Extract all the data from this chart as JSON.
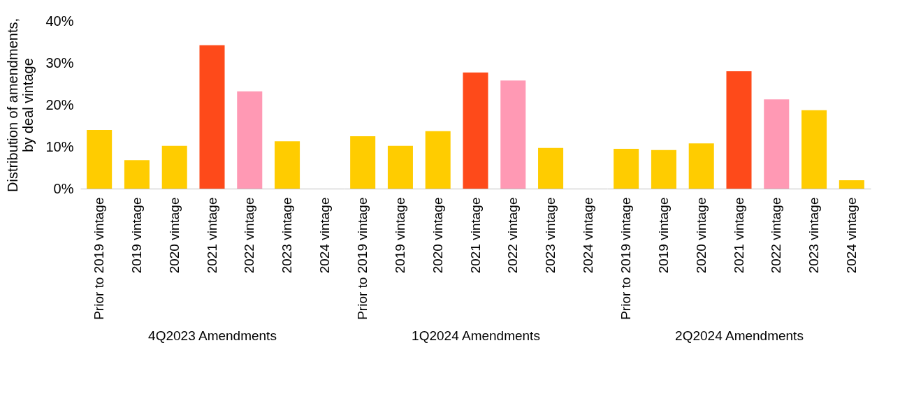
{
  "chart_data": [
    {
      "type": "bar",
      "xlabel": "4Q2023 Amendments",
      "ylabel": "Distribution of amendments, by deal vintage",
      "categories": [
        "Prior to 2019 vintage",
        "2019 vintage",
        "2020 vintage",
        "2021 vintage",
        "2022 vintage",
        "2023 vintage",
        "2024 vintage"
      ],
      "values": [
        0.14,
        0.068,
        0.102,
        0.342,
        0.232,
        0.113,
        0
      ],
      "colors": [
        "#ffcc00",
        "#ffcc00",
        "#ffcc00",
        "#fe4a1a",
        "#ff99b4",
        "#ffcc00",
        "#ffcc00"
      ],
      "ylim": [
        0,
        0.4
      ],
      "yticks": [
        {
          "value": 0,
          "label": "0%"
        },
        {
          "value": 0.1,
          "label": "10%"
        },
        {
          "value": 0.2,
          "label": "20%"
        },
        {
          "value": 0.3,
          "label": "30%"
        },
        {
          "value": 0.4,
          "label": "40%"
        }
      ]
    },
    {
      "type": "bar",
      "xlabel": "1Q2024 Amendments",
      "categories": [
        "Prior to 2019 vintage",
        "2019 vintage",
        "2020 vintage",
        "2021 vintage",
        "2022 vintage",
        "2023 vintage",
        "2024 vintage"
      ],
      "values": [
        0.125,
        0.102,
        0.137,
        0.277,
        0.258,
        0.097,
        0
      ],
      "colors": [
        "#ffcc00",
        "#ffcc00",
        "#ffcc00",
        "#fe4a1a",
        "#ff99b4",
        "#ffcc00",
        "#ffcc00"
      ],
      "ylim": [
        0,
        0.4
      ],
      "tick_labels": "x"
    },
    {
      "type": "bar",
      "xlabel": "2Q2024 Amendments",
      "categories": [
        "Prior to 2019 vintage",
        "2019 vintage",
        "2020 vintage",
        "2021 vintage",
        "2022 vintage",
        "2023 vintage",
        "2024 vintage"
      ],
      "values": [
        0.095,
        0.092,
        0.108,
        0.28,
        0.213,
        0.187,
        0.02
      ],
      "colors": [
        "#ffcc00",
        "#ffcc00",
        "#ffcc00",
        "#fe4a1a",
        "#ff99b4",
        "#ffcc00",
        "#ffcc00"
      ],
      "ylim": [
        0,
        0.4
      ],
      "tick_labels": "x"
    }
  ]
}
